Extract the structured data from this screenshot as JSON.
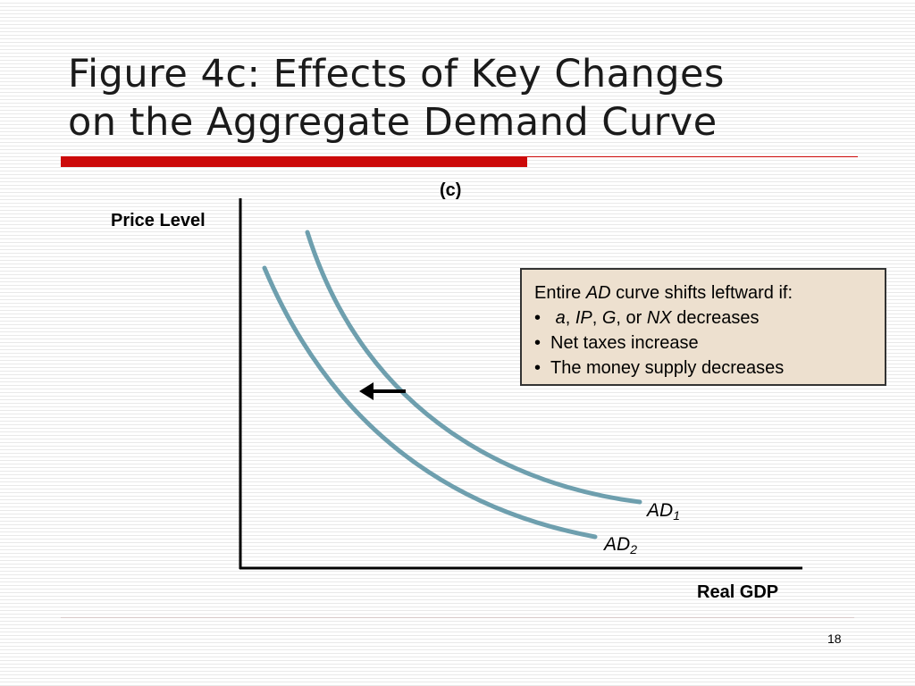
{
  "slide": {
    "title_line1": "Figure 4c:  Effects of Key Changes",
    "title_line2": "on the Aggregate Demand Curve",
    "page_number": "18"
  },
  "diagram": {
    "panel_label": "(c)",
    "y_axis_label": "Price Level",
    "x_axis_label": "Real GDP",
    "curves": [
      {
        "name": "AD",
        "subscript": "1",
        "color": "#6e9fae"
      },
      {
        "name": "AD",
        "subscript": "2",
        "color": "#6e9fae"
      }
    ],
    "shift_arrow": "left-arrow"
  },
  "info_box": {
    "line1_prefix": "Entire ",
    "line1_em": "AD",
    "line1_suffix": " curve shifts leftward if:",
    "bullet_char": "•",
    "b1_a": "a",
    "b1_sep1": ", ",
    "b1_ip": "IP",
    "b1_sep2": ", ",
    "b1_g": "G",
    "b1_sep3": ", or ",
    "b1_nx": "NX",
    "b1_end": " decreases",
    "b2": "Net taxes increase",
    "b3": "The money supply decreases"
  }
}
